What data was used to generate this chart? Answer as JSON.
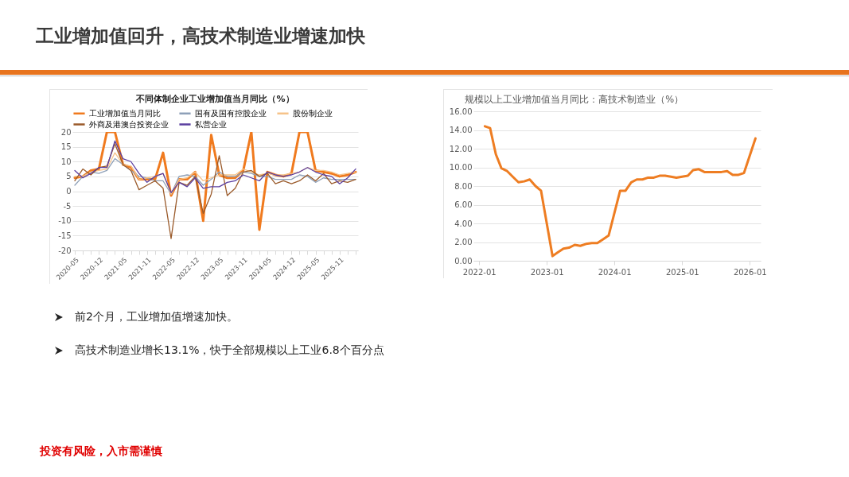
{
  "chart_data": [
    {
      "type": "line",
      "title": "不同体制企业工业增加值当月同比（%）",
      "categories": [
        "2020-05",
        null,
        null,
        "2020-12",
        null,
        null,
        "2021-05",
        null,
        null,
        "2021-11",
        null,
        null,
        "2022-05",
        null,
        null,
        "2022-12",
        null,
        null,
        "2023-05",
        null,
        null,
        "2023-11",
        null,
        null,
        "2024-05",
        null,
        null,
        "2024-12",
        null,
        null,
        "2025-05",
        null,
        null,
        "2025-11",
        null,
        null
      ],
      "ylim": [
        -20,
        20
      ],
      "yticks": [
        -20,
        -15,
        -10,
        -5,
        0,
        5,
        10,
        15,
        20
      ],
      "grid": "y",
      "legend": "top",
      "series": [
        {
          "name": "工业增加值当月同比",
          "color": "#f07a1e",
          "values": [
            4.5,
            5,
            7,
            7.5,
            20,
            20,
            9,
            8,
            4,
            4,
            4,
            13,
            -1.5,
            4,
            4,
            6.5,
            -10,
            19,
            5.5,
            4.5,
            4.5,
            7,
            20,
            -13,
            6.5,
            5.5,
            5,
            6,
            20,
            20,
            7,
            6.5,
            6,
            5,
            5.5,
            6.5
          ]
        },
        {
          "name": "国有及国有控股企业",
          "color": "#8ea0b8",
          "values": [
            2,
            5,
            6.5,
            6,
            7,
            11,
            9,
            7,
            5,
            4.5,
            3.5,
            3.5,
            -1,
            5,
            5.5,
            5,
            2,
            4,
            6.5,
            5,
            5,
            6.5,
            6,
            5,
            5,
            4,
            4,
            4,
            5.5,
            5,
            3,
            4.5,
            4,
            4,
            4,
            4
          ]
        },
        {
          "name": "股份制企业",
          "color": "#f6c38a",
          "values": [
            5,
            5,
            6.5,
            7,
            7.5,
            13,
            9,
            8.5,
            4,
            4.5,
            5,
            6,
            -1,
            4,
            4.5,
            6.5,
            3.5,
            4.5,
            5.5,
            5.5,
            5.5,
            7.5,
            6.5,
            5.5,
            6,
            5.5,
            5.5,
            6,
            6.5,
            8,
            7,
            7,
            6.5,
            5.5,
            6,
            6.5
          ]
        },
        {
          "name": "外商及港澳台投资企业",
          "color": "#9a5a2a",
          "values": [
            3.5,
            7.5,
            5.5,
            8,
            8.5,
            16,
            9,
            7,
            0.5,
            2,
            3.5,
            1,
            -16,
            3,
            2,
            5,
            -7.5,
            -1,
            12,
            -1.5,
            1,
            6.5,
            7,
            5,
            6,
            2.5,
            3.5,
            2.5,
            3.5,
            5.5,
            3.5,
            6,
            2.5,
            3.5,
            3,
            4
          ]
        },
        {
          "name": "私营企业",
          "color": "#5b3fa0",
          "values": [
            7,
            4.5,
            6,
            8,
            8,
            17,
            11,
            10,
            6,
            3,
            5,
            6,
            -0.5,
            3,
            1.5,
            4.5,
            1,
            1.5,
            1.5,
            3,
            3.5,
            5.5,
            4.5,
            3.5,
            6.5,
            5.5,
            5,
            5.5,
            6.5,
            8,
            6.5,
            5.5,
            5,
            2.5,
            4.5,
            7.5
          ]
        }
      ]
    },
    {
      "type": "line",
      "title": "规模以上工业增加值当月同比：高技术制造业（%）",
      "x": [
        "2022-02",
        "2022-03",
        "2022-04",
        "2022-05",
        "2022-06",
        "2022-07",
        "2022-08",
        "2022-09",
        "2022-10",
        "2022-11",
        "2022-12",
        "2023-02",
        "2023-03",
        "2023-04",
        "2023-05",
        "2023-06",
        "2023-07",
        "2023-08",
        "2023-09",
        "2023-10",
        "2023-11",
        "2023-12",
        "2024-02",
        "2024-03",
        "2024-04",
        "2024-05",
        "2024-06",
        "2024-07",
        "2024-08",
        "2024-09",
        "2024-10",
        "2024-11",
        "2024-12",
        "2025-02",
        "2025-03",
        "2025-04",
        "2025-05",
        "2025-06",
        "2025-07",
        "2025-08",
        "2025-09",
        "2025-10",
        "2025-11",
        "2025-12",
        "2026-02"
      ],
      "xlim": [
        "2021-12",
        "2026-03"
      ],
      "xticks": [
        "2022-01",
        "2023-01",
        "2024-01",
        "2025-01",
        "2026-01"
      ],
      "ylim": [
        0,
        16
      ],
      "yticks": [
        {
          "value": 0,
          "label": "0.00"
        },
        {
          "value": 2,
          "label": "2.00"
        },
        {
          "value": 4,
          "label": "4.00"
        },
        {
          "value": 6,
          "label": "6.00"
        },
        {
          "value": 8,
          "label": "8.00"
        },
        {
          "value": 10,
          "label": "10.00"
        },
        {
          "value": 12,
          "label": "12.00"
        },
        {
          "value": 14,
          "label": "14.00"
        },
        {
          "value": 16,
          "label": "16.00"
        }
      ],
      "grid": "y",
      "series": [
        {
          "color": "#ee7d22",
          "values": [
            14.4,
            14.2,
            11.4,
            9.9,
            9.6,
            9.0,
            8.4,
            8.5,
            8.7,
            8.0,
            7.5,
            0.5,
            0.9,
            1.3,
            1.4,
            1.7,
            1.6,
            1.8,
            1.9,
            1.9,
            2.3,
            2.7,
            7.5,
            7.5,
            8.4,
            8.7,
            8.7,
            8.9,
            8.9,
            9.1,
            9.1,
            9.0,
            8.9,
            9.1,
            9.7,
            9.8,
            9.5,
            9.5,
            9.5,
            9.5,
            9.6,
            9.2,
            9.2,
            9.4,
            13.1
          ]
        }
      ]
    },
    {
      "type": "other",
      "title": "工业增加值回升，高技术制造业增速加快",
      "annotations": [
        "前2个月，工业增加值增速加快。",
        "高技术制造业增长13.1%，快于全部规模以上工业6.8个百分点",
        "投资有风险，入市需谨慎"
      ]
    }
  ]
}
